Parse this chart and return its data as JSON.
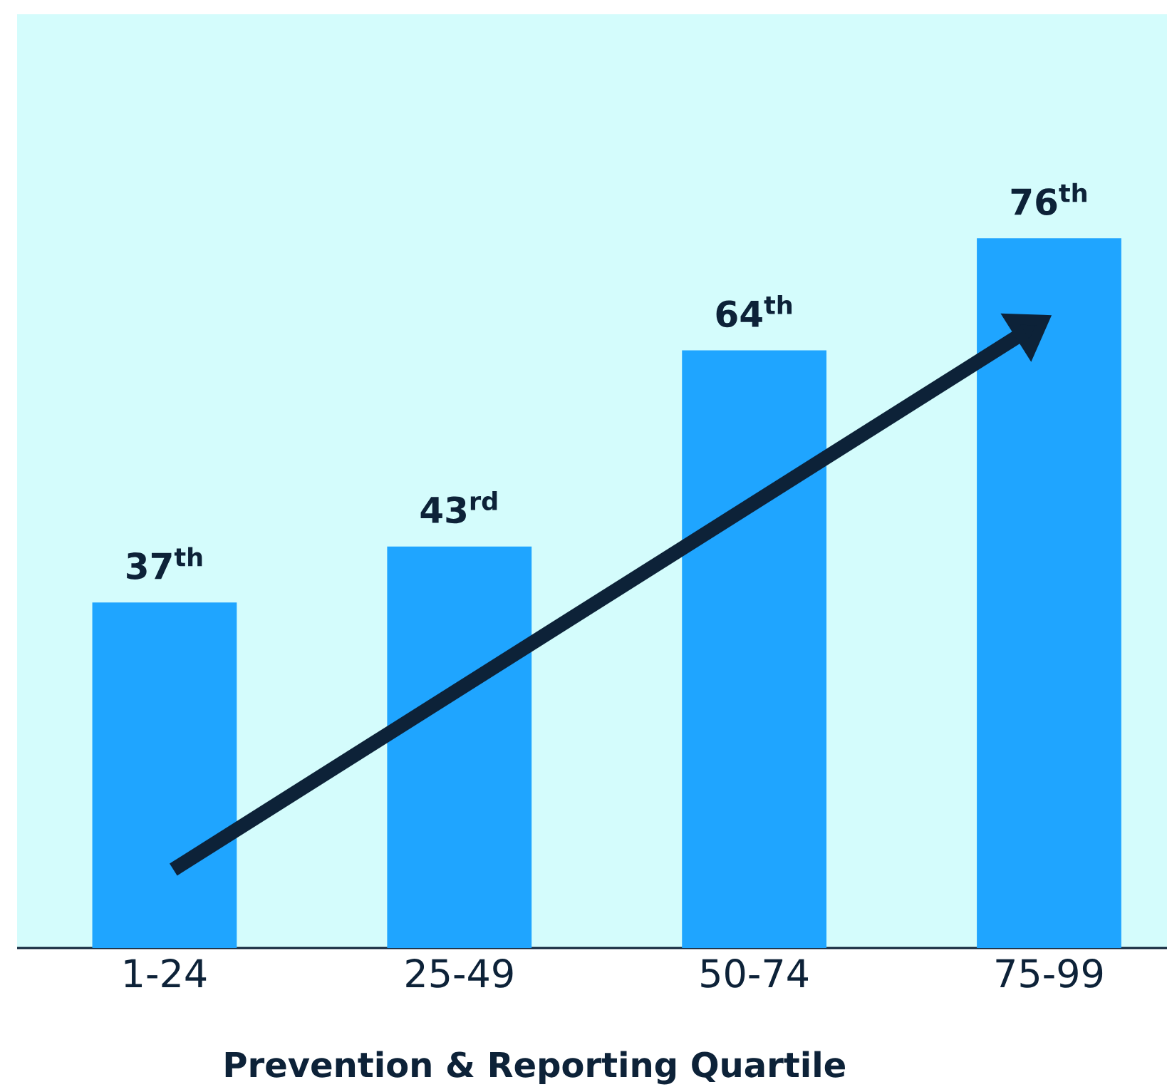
{
  "chart_data": {
    "type": "bar",
    "xlabel": "Prevention & Reporting Quartile",
    "categories": [
      "1-24",
      "25-49",
      "50-74",
      "75-99"
    ],
    "values": [
      37,
      43,
      64,
      76
    ],
    "value_labels": [
      "37$^{th}$",
      "43$^{rd}$",
      "64$^{th}$",
      "76$^{th}$"
    ],
    "color": "#1fa5ff",
    "ylim": [
      0,
      100
    ],
    "tick_labels": "x"
  }
}
